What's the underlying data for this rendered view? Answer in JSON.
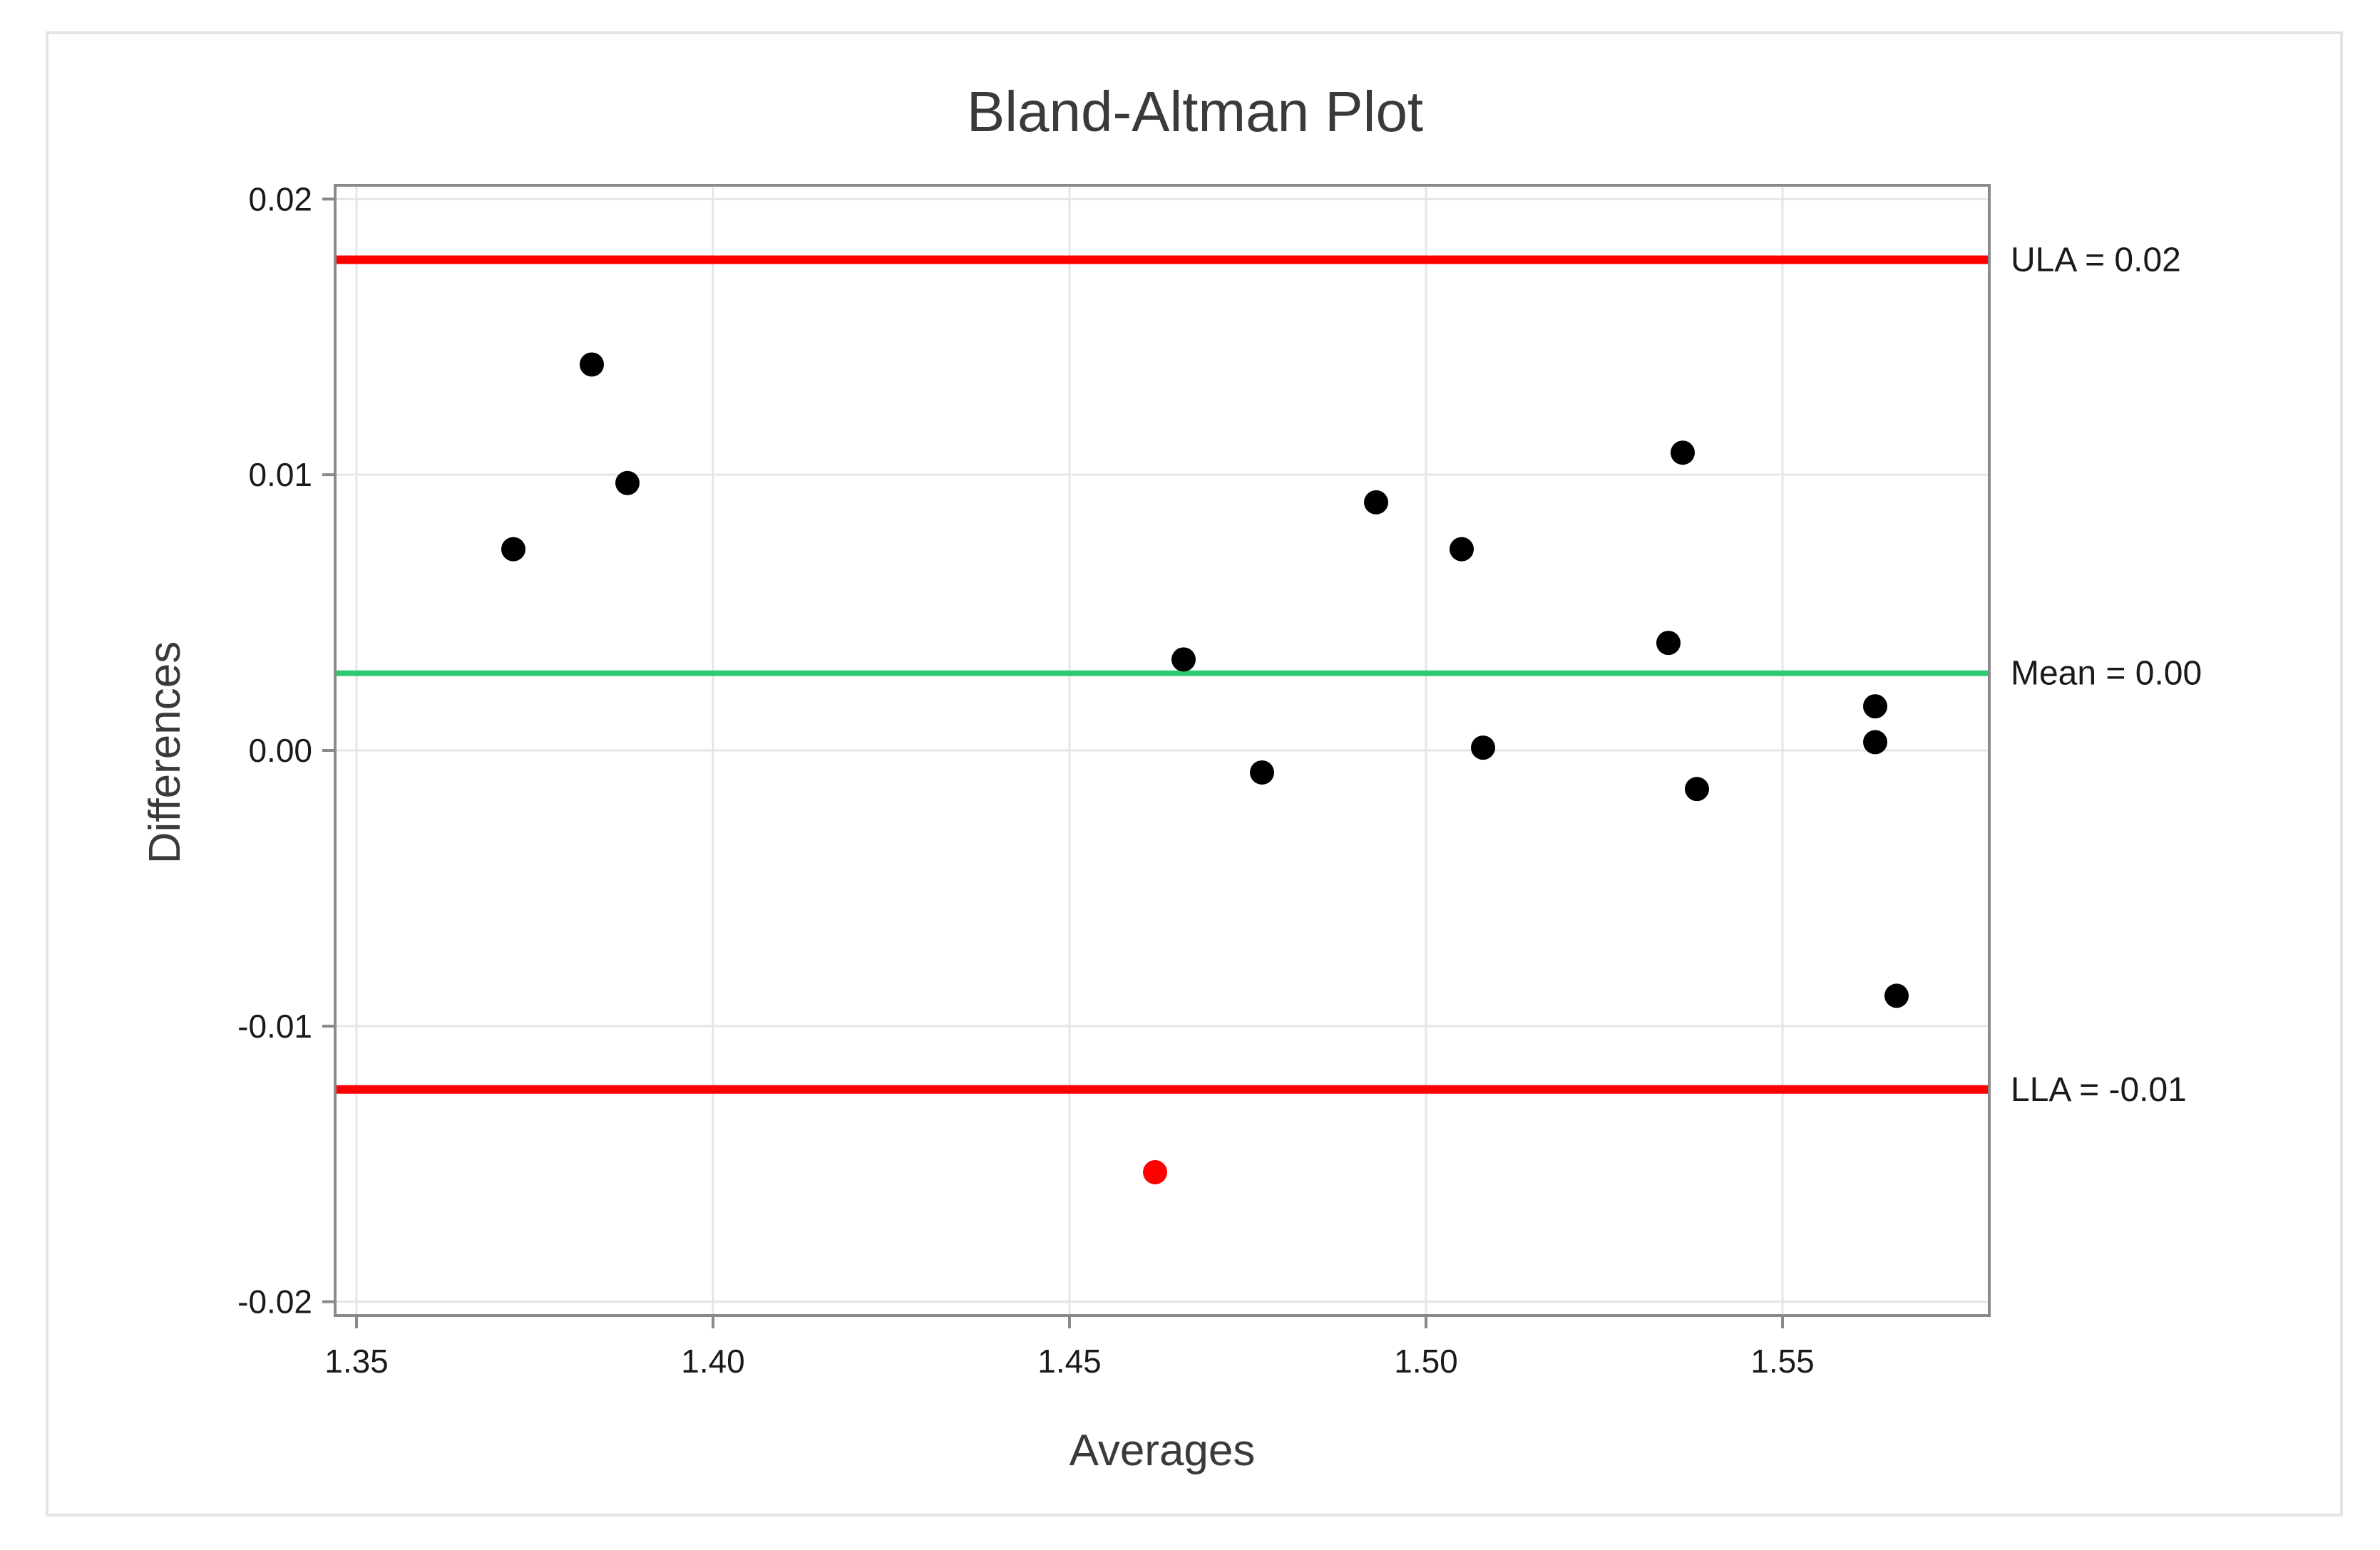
{
  "chart_data": {
    "type": "scatter",
    "title": "Bland-Altman Plot",
    "xlabel": "Averages",
    "ylabel": "Differences",
    "xlim": [
      1.347,
      1.579
    ],
    "ylim": [
      -0.0205,
      0.0205
    ],
    "xticks": [
      {
        "value": 1.35,
        "label": "1.35"
      },
      {
        "value": 1.4,
        "label": "1.40"
      },
      {
        "value": 1.45,
        "label": "1.45"
      },
      {
        "value": 1.5,
        "label": "1.50"
      },
      {
        "value": 1.55,
        "label": "1.55"
      }
    ],
    "yticks": [
      {
        "value": 0.02,
        "label": "0.02"
      },
      {
        "value": 0.01,
        "label": "0.01"
      },
      {
        "value": 0.0,
        "label": "0.00"
      },
      {
        "value": -0.01,
        "label": "-0.01"
      },
      {
        "value": -0.02,
        "label": "-0.02"
      }
    ],
    "grid": true,
    "points": [
      {
        "x": 1.372,
        "y": 0.0073,
        "color": "#000000"
      },
      {
        "x": 1.383,
        "y": 0.014,
        "color": "#000000"
      },
      {
        "x": 1.388,
        "y": 0.0097,
        "color": "#000000"
      },
      {
        "x": 1.462,
        "y": -0.0153,
        "color": "#ff0000"
      },
      {
        "x": 1.466,
        "y": 0.0033,
        "color": "#000000"
      },
      {
        "x": 1.477,
        "y": -0.0008,
        "color": "#000000"
      },
      {
        "x": 1.493,
        "y": 0.009,
        "color": "#000000"
      },
      {
        "x": 1.505,
        "y": 0.0073,
        "color": "#000000"
      },
      {
        "x": 1.508,
        "y": 0.0001,
        "color": "#000000"
      },
      {
        "x": 1.534,
        "y": 0.0039,
        "color": "#000000"
      },
      {
        "x": 1.536,
        "y": 0.0108,
        "color": "#000000"
      },
      {
        "x": 1.538,
        "y": -0.0014,
        "color": "#000000"
      },
      {
        "x": 1.563,
        "y": 0.0003,
        "color": "#000000"
      },
      {
        "x": 1.563,
        "y": 0.0016,
        "color": "#000000"
      },
      {
        "x": 1.566,
        "y": -0.0089,
        "color": "#000000"
      }
    ],
    "reference_lines": [
      {
        "label": "ULA = 0.02",
        "y": 0.0178,
        "color": "#ff0000"
      },
      {
        "label": "Mean = 0.00",
        "y": 0.0028,
        "color": "#2ecc71"
      },
      {
        "label": "LLA = -0.01",
        "y": -0.0123,
        "color": "#ff0000"
      }
    ]
  }
}
